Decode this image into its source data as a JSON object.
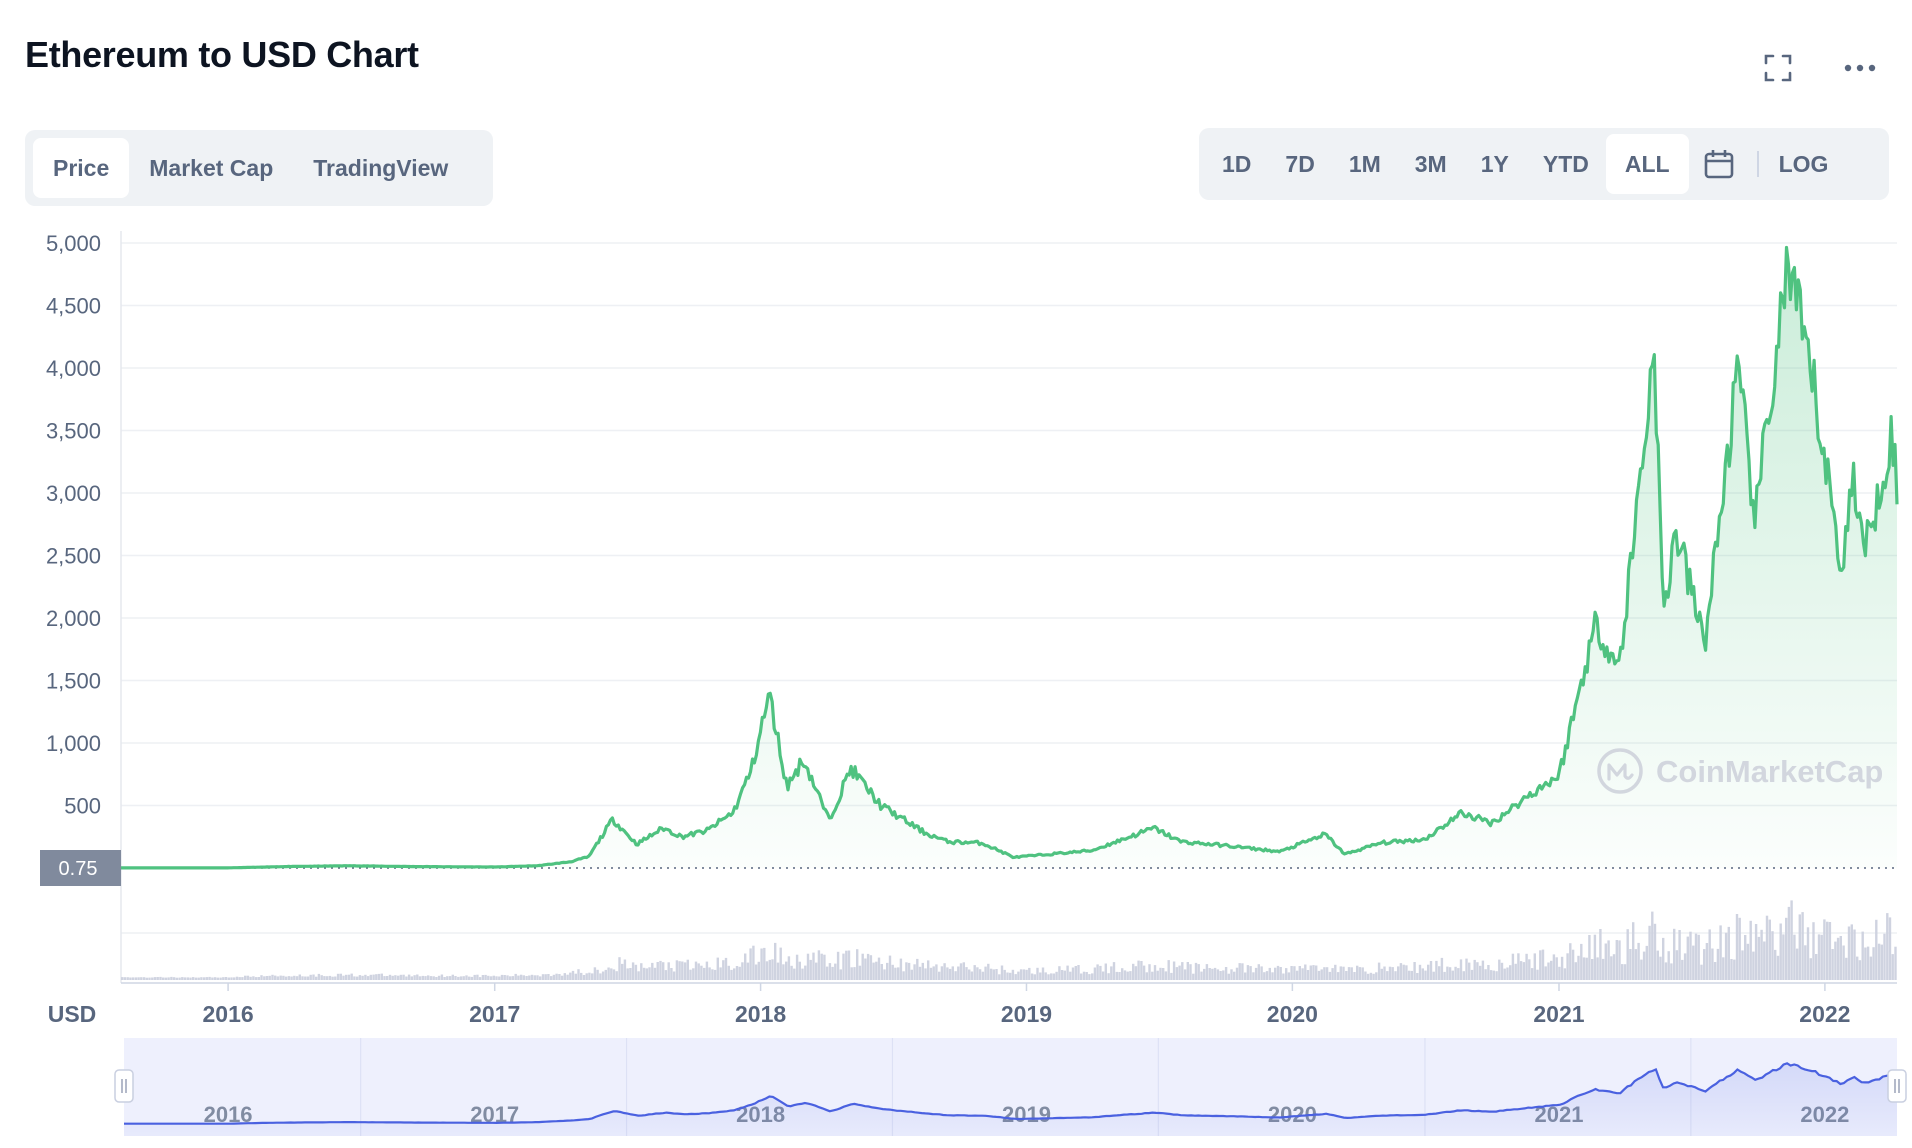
{
  "header": {
    "title": "Ethereum to USD Chart"
  },
  "icons": {
    "expand": "expand-icon",
    "more": "more-dots-icon",
    "calendar": "calendar-icon"
  },
  "tabs": [
    {
      "label": "Price",
      "active": true
    },
    {
      "label": "Market Cap",
      "active": false
    },
    {
      "label": "TradingView",
      "active": false
    }
  ],
  "ranges": [
    {
      "label": "1D",
      "active": false
    },
    {
      "label": "7D",
      "active": false
    },
    {
      "label": "1M",
      "active": false
    },
    {
      "label": "3M",
      "active": false
    },
    {
      "label": "1Y",
      "active": false
    },
    {
      "label": "YTD",
      "active": false
    },
    {
      "label": "ALL",
      "active": true
    }
  ],
  "scale_toggle": {
    "label": "LOG"
  },
  "watermark": {
    "text": "CoinMarketCap"
  },
  "colors": {
    "price_line": "#4fc280",
    "volume": "#cfd3e0",
    "navigator_line": "#4a61e0",
    "navigator_bg": "#eef0fd",
    "text_muted": "#58667e"
  },
  "chart_data": {
    "type": "area",
    "currency_label": "USD",
    "y_ticks": [
      "5,000",
      "4,500",
      "4,000",
      "3,500",
      "3,000",
      "2,500",
      "2,000",
      "1,500",
      "1,000",
      "500"
    ],
    "ylim": [
      0,
      5000
    ],
    "x_ticks": [
      "2016",
      "2017",
      "2018",
      "2019",
      "2020",
      "2021",
      "2022"
    ],
    "xlim": [
      "2015-08-07",
      "2022-04-10"
    ],
    "baseline_label": "0.75",
    "grid": true,
    "series": [
      {
        "points": [
          [
            "2015-08-07",
            1
          ],
          [
            "2016-01-01",
            1
          ],
          [
            "2016-03-15",
            11
          ],
          [
            "2016-06-15",
            18
          ],
          [
            "2016-09-01",
            12
          ],
          [
            "2017-01-01",
            8
          ],
          [
            "2017-03-01",
            18
          ],
          [
            "2017-04-15",
            50
          ],
          [
            "2017-05-10",
            90
          ],
          [
            "2017-06-12",
            390
          ],
          [
            "2017-07-15",
            190
          ],
          [
            "2017-08-20",
            320
          ],
          [
            "2017-09-15",
            250
          ],
          [
            "2017-10-20",
            300
          ],
          [
            "2017-11-25",
            450
          ],
          [
            "2017-12-20",
            800
          ],
          [
            "2018-01-13",
            1390
          ],
          [
            "2018-02-06",
            650
          ],
          [
            "2018-03-01",
            870
          ],
          [
            "2018-04-05",
            380
          ],
          [
            "2018-05-05",
            800
          ],
          [
            "2018-06-15",
            500
          ],
          [
            "2018-08-15",
            280
          ],
          [
            "2018-09-15",
            210
          ],
          [
            "2018-11-01",
            200
          ],
          [
            "2018-12-15",
            85
          ],
          [
            "2019-02-01",
            110
          ],
          [
            "2019-04-01",
            140
          ],
          [
            "2019-06-25",
            320
          ],
          [
            "2019-08-01",
            210
          ],
          [
            "2019-10-01",
            180
          ],
          [
            "2019-12-15",
            130
          ],
          [
            "2020-02-15",
            270
          ],
          [
            "2020-03-13",
            110
          ],
          [
            "2020-05-01",
            200
          ],
          [
            "2020-07-01",
            230
          ],
          [
            "2020-08-20",
            440
          ],
          [
            "2020-10-01",
            360
          ],
          [
            "2020-11-25",
            600
          ],
          [
            "2021-01-01",
            740
          ],
          [
            "2021-02-20",
            1950
          ],
          [
            "2021-03-25",
            1600
          ],
          [
            "2021-05-12",
            4170
          ],
          [
            "2021-05-24",
            2000
          ],
          [
            "2021-06-10",
            2700
          ],
          [
            "2021-07-20",
            1800
          ],
          [
            "2021-09-03",
            3950
          ],
          [
            "2021-09-28",
            2800
          ],
          [
            "2021-11-10",
            4800
          ],
          [
            "2021-12-15",
            3900
          ],
          [
            "2022-01-24",
            2400
          ],
          [
            "2022-02-10",
            3150
          ],
          [
            "2022-02-24",
            2500
          ],
          [
            "2022-04-03",
            3500
          ],
          [
            "2022-04-10",
            3000
          ]
        ]
      }
    ]
  }
}
